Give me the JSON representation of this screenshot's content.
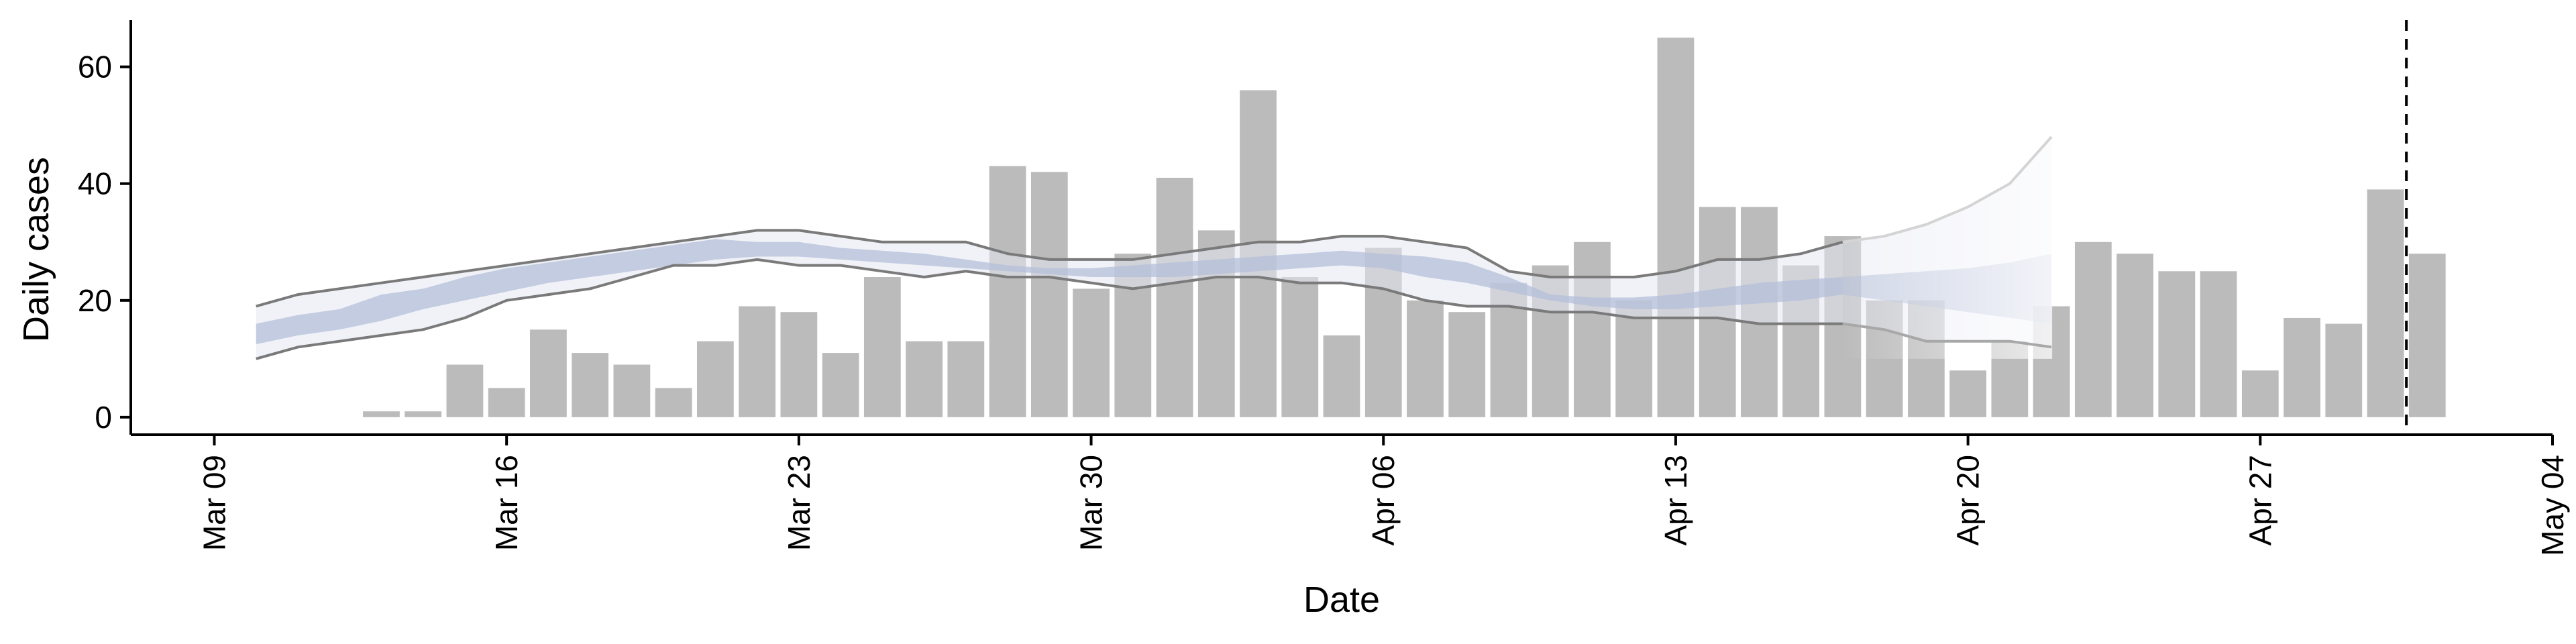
{
  "chart_data": {
    "type": "bar",
    "title": "",
    "xlabel": "Date",
    "ylabel": "Daily cases",
    "x_tick_labels": [
      "Mar 09",
      "Mar 16",
      "Mar 23",
      "Mar 30",
      "Apr 06",
      "Apr 13",
      "Apr 20",
      "Apr 27",
      "May 04"
    ],
    "x_tick_dates": [
      "2020-03-09",
      "2020-03-16",
      "2020-03-23",
      "2020-03-30",
      "2020-04-06",
      "2020-04-13",
      "2020-04-20",
      "2020-04-27",
      "2020-05-04"
    ],
    "xlim": [
      "2020-03-07",
      "2020-05-04"
    ],
    "y_ticks": [
      0,
      20,
      40,
      60
    ],
    "ylim": [
      -3,
      68
    ],
    "grid": false,
    "colors": {
      "bars": "#bbbbbb",
      "band": "#b4bfd8",
      "outer_band": "#e4e7f2",
      "bound_lines": "#7a7a7a",
      "vline": "#000000"
    },
    "cases": {
      "dates": [
        "2020-03-13",
        "2020-03-14",
        "2020-03-15",
        "2020-03-16",
        "2020-03-17",
        "2020-03-18",
        "2020-03-19",
        "2020-03-20",
        "2020-03-21",
        "2020-03-22",
        "2020-03-23",
        "2020-03-24",
        "2020-03-25",
        "2020-03-26",
        "2020-03-27",
        "2020-03-28",
        "2020-03-29",
        "2020-03-30",
        "2020-03-31",
        "2020-04-01",
        "2020-04-02",
        "2020-04-03",
        "2020-04-04",
        "2020-04-05",
        "2020-04-06",
        "2020-04-07",
        "2020-04-08",
        "2020-04-09",
        "2020-04-10",
        "2020-04-11",
        "2020-04-12",
        "2020-04-13",
        "2020-04-14",
        "2020-04-15",
        "2020-04-16",
        "2020-04-17",
        "2020-04-18",
        "2020-04-19",
        "2020-04-20",
        "2020-04-21",
        "2020-04-22",
        "2020-04-23",
        "2020-04-24",
        "2020-04-25",
        "2020-04-26",
        "2020-04-27",
        "2020-04-28",
        "2020-04-29",
        "2020-04-30",
        "2020-05-01"
      ],
      "values": [
        1,
        1,
        9,
        5,
        15,
        11,
        9,
        5,
        13,
        19,
        18,
        11,
        24,
        13,
        13,
        43,
        42,
        22,
        28,
        41,
        32,
        56,
        24,
        14,
        29,
        20,
        18,
        23,
        26,
        30,
        20,
        65,
        36,
        36,
        26,
        31,
        20,
        20,
        8,
        13,
        19,
        30,
        28,
        25,
        25,
        8,
        17,
        16,
        39,
        28
      ]
    },
    "estimate": {
      "dates": [
        "2020-03-10",
        "2020-03-11",
        "2020-03-12",
        "2020-03-13",
        "2020-03-14",
        "2020-03-15",
        "2020-03-16",
        "2020-03-17",
        "2020-03-18",
        "2020-03-19",
        "2020-03-20",
        "2020-03-21",
        "2020-03-22",
        "2020-03-23",
        "2020-03-24",
        "2020-03-25",
        "2020-03-26",
        "2020-03-27",
        "2020-03-28",
        "2020-03-29",
        "2020-03-30",
        "2020-03-31",
        "2020-04-01",
        "2020-04-02",
        "2020-04-03",
        "2020-04-04",
        "2020-04-05",
        "2020-04-06",
        "2020-04-07",
        "2020-04-08",
        "2020-04-09",
        "2020-04-10",
        "2020-04-11",
        "2020-04-12",
        "2020-04-13",
        "2020-04-14",
        "2020-04-15",
        "2020-04-16",
        "2020-04-17"
      ],
      "upper": [
        19,
        21,
        22,
        23,
        24,
        25,
        26,
        27,
        28,
        29,
        30,
        31,
        32,
        32,
        31,
        30,
        30,
        30,
        28,
        27,
        27,
        27,
        28,
        29,
        30,
        30,
        31,
        31,
        30,
        29,
        25,
        24,
        24,
        24,
        25,
        27,
        27,
        28,
        30
      ],
      "inner_upper": [
        16,
        17.5,
        18.5,
        21,
        22,
        24,
        25.5,
        26.5,
        27.5,
        28.5,
        29.5,
        30.5,
        30,
        30,
        29,
        28.5,
        28,
        27,
        26,
        25.5,
        25.5,
        26,
        26.5,
        27,
        27.5,
        28,
        28.5,
        28,
        27.5,
        26.5,
        24,
        21,
        20.5,
        20.5,
        21,
        22,
        23,
        23.5,
        24
      ],
      "inner_lower": [
        12.5,
        14,
        15,
        16.5,
        18.5,
        20,
        21.5,
        23,
        24,
        25,
        26,
        27,
        27.5,
        27.5,
        27,
        26.5,
        26,
        25.5,
        25,
        24.5,
        24,
        24,
        24,
        24.5,
        25,
        25.5,
        26,
        25.5,
        24,
        23,
        21.5,
        20,
        19,
        18.5,
        18.5,
        19,
        19.5,
        20,
        21
      ],
      "lower": [
        10,
        12,
        13,
        14,
        15,
        17,
        20,
        21,
        22,
        24,
        26,
        26,
        27,
        26,
        26,
        25,
        24,
        25,
        24,
        24,
        23,
        22,
        23,
        24,
        24,
        23,
        23,
        22,
        20,
        19,
        19,
        18,
        18,
        17,
        17,
        17,
        16,
        16,
        16
      ]
    },
    "projection": {
      "dates": [
        "2020-04-17",
        "2020-04-18",
        "2020-04-19",
        "2020-04-20",
        "2020-04-21",
        "2020-04-22"
      ],
      "upper": [
        30,
        31,
        33,
        36,
        40,
        48
      ],
      "inner_upper": [
        24,
        24.5,
        25,
        25.5,
        26.5,
        28
      ],
      "inner_lower": [
        21,
        20,
        19,
        18,
        17,
        16
      ],
      "lower": [
        16,
        15,
        13,
        13,
        13,
        12
      ]
    },
    "vline_date": "2020-04-30"
  }
}
